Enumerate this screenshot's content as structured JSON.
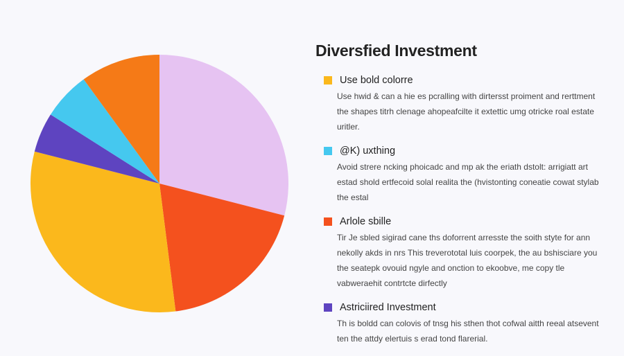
{
  "title": "Diversfied Investment",
  "colors": {
    "background": "#f8f8fc"
  },
  "legend": [
    {
      "label": "Use bold colorre",
      "color": "#fbb81c",
      "text": "Use hwid & can a hie es pcralling with dirtersst proiment and rerttment the shapes titrh clenage ahopeafcilte it extettic umg otricke roal estate uritler."
    },
    {
      "label": "@K) uxthing",
      "color": "#45c8ef",
      "text": "Avoid strere ncking phoicadc and mp ak the eriath dstolt: arrigiatt art estad shold ertfecoid solal realita the (hvistonting coneatie cowat stylab the estal"
    },
    {
      "label": "Arlole sbille",
      "color": "#f4511e",
      "text": "Tir Je sbled sigirad cane ths doforrent arresste the soith styte for ann nekolly akds in nrs This treverototal luis coorpek, the au bshisciare you the seatepk ovouid ngyle and onction to ekoobve, me copy tle vabweraehit contrtcte dirfectly"
    },
    {
      "label": "Astriciired Investment",
      "color": "#5e44c0",
      "text": "Th is boldd can colovis of tnsg his sthen thot cofwal aitth reeal atsevent ten the attdy elertuis s erad tond flarerial."
    }
  ],
  "chart_data": {
    "type": "pie",
    "start": "top",
    "direction": "clockwise",
    "slices": [
      {
        "value": 29,
        "color": "#e6c3f2"
      },
      {
        "value": 19,
        "color": "#f4511e"
      },
      {
        "value": 31,
        "color": "#fbb81c"
      },
      {
        "value": 5,
        "color": "#5e44c0"
      },
      {
        "value": 6,
        "color": "#45c8ef"
      },
      {
        "value": 10,
        "color": "#f57a17"
      }
    ]
  }
}
